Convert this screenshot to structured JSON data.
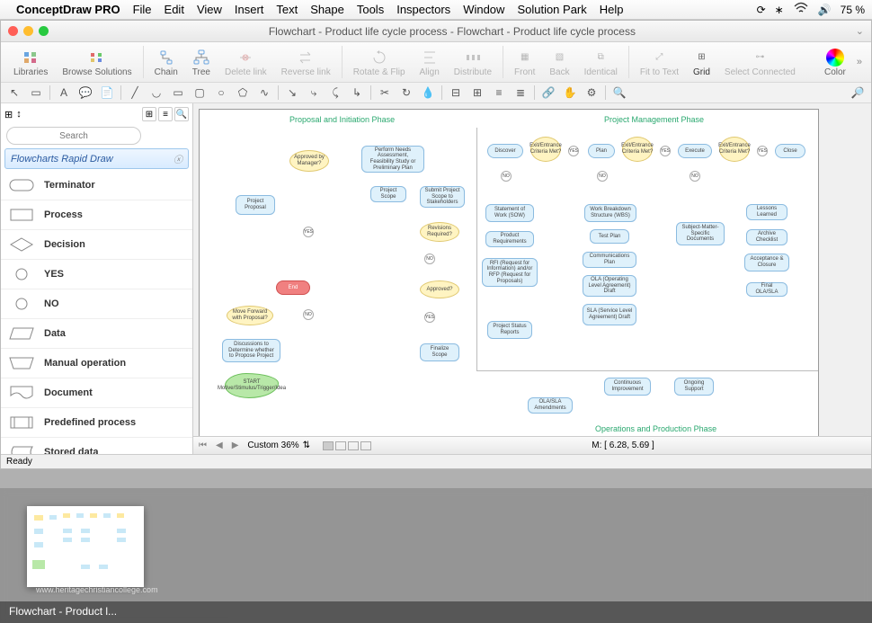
{
  "menubar": {
    "app": "ConceptDraw PRO",
    "items": [
      "File",
      "Edit",
      "View",
      "Insert",
      "Text",
      "Shape",
      "Tools",
      "Inspectors",
      "Window",
      "Solution Park",
      "Help"
    ],
    "battery": "75 %"
  },
  "window": {
    "title": "Flowchart - Product life cycle process - Flowchart - Product life cycle process"
  },
  "ribbon": {
    "libraries": "Libraries",
    "browse": "Browse Solutions",
    "chain": "Chain",
    "tree": "Tree",
    "deletelink": "Delete link",
    "reverselink": "Reverse link",
    "rotateflip": "Rotate & Flip",
    "align": "Align",
    "distribute": "Distribute",
    "front": "Front",
    "back": "Back",
    "identical": "Identical",
    "fittotext": "Fit to Text",
    "grid": "Grid",
    "selectconnected": "Select Connected",
    "color": "Color"
  },
  "sidebar": {
    "search_placeholder": "Search",
    "library_title": "Flowcharts Rapid Draw",
    "shapes": [
      {
        "label": "Terminator",
        "kind": "terminator"
      },
      {
        "label": "Process",
        "kind": "process"
      },
      {
        "label": "Decision",
        "kind": "decision"
      },
      {
        "label": "YES",
        "kind": "yes"
      },
      {
        "label": "NO",
        "kind": "no"
      },
      {
        "label": "Data",
        "kind": "data"
      },
      {
        "label": "Manual operation",
        "kind": "manual"
      },
      {
        "label": "Document",
        "kind": "document"
      },
      {
        "label": "Predefined process",
        "kind": "predef"
      },
      {
        "label": "Stored data",
        "kind": "stored"
      }
    ]
  },
  "canvas": {
    "phases": {
      "proposal": "Proposal and Initiation Phase",
      "pm": "Project Management Phase",
      "ops": "Operations and Production Phase"
    },
    "nodes": {
      "approved_mgr": "Approved by Manager?",
      "perform_needs": "Perform Needs Assessment, Feasibility Study or Preliminary Plan",
      "project_proposal": "Project Proposal",
      "project_scope": "Project Scope",
      "submit_scope": "Submit Project Scope to Stakeholders",
      "revisions": "Revisions Required?",
      "move_forward": "Move Forward with Proposal?",
      "end": "End",
      "approved": "Approved?",
      "discussions": "Discussions to Determine whether to Propose Project",
      "start": "START Motive/Stimulus/Trigger/Idea",
      "finalize": "Finalize Scope",
      "discover": "Discover",
      "plan": "Plan",
      "execute": "Execute",
      "close": "Close",
      "exit1": "Exit/Entrance Criteria Met?",
      "exit2": "Exit/Entrance Criteria Met?",
      "exit3": "Exit/Entrance Criteria Met?",
      "sow": "Statement of Work (SOW)",
      "prodreq": "Product Requirements",
      "rfi": "RFI (Request for Information) and/or RFP (Request for Proposals)",
      "status": "Project Status Reports",
      "wbs": "Work Breakdown Structure (WBS)",
      "testplan": "Test Plan",
      "commplan": "Communications Plan",
      "ola": "OLA (Operating Level Agreement) Draft",
      "sla": "SLA (Service Level Agreement) Draft",
      "smedocs": "Subject-Matter-Specific Documents",
      "lessons": "Lessons Learned",
      "archive": "Archive Checklist",
      "accept": "Acceptance & Closure",
      "finalola": "Final OLA/SLA",
      "olasla_amend": "OLA/SLA Amendments",
      "contimprove": "Continuous Improvement",
      "ongoing": "Ongoing Support"
    },
    "labels": {
      "yes": "YES",
      "no": "NO"
    }
  },
  "footer": {
    "zoom": "Custom 36%",
    "coords": "M: [ 6.28, 5.69 ]",
    "ready": "Ready"
  },
  "tray": {
    "label": "Flowchart - Product l...",
    "watermark": "www.heritagechristiancollege.com"
  }
}
